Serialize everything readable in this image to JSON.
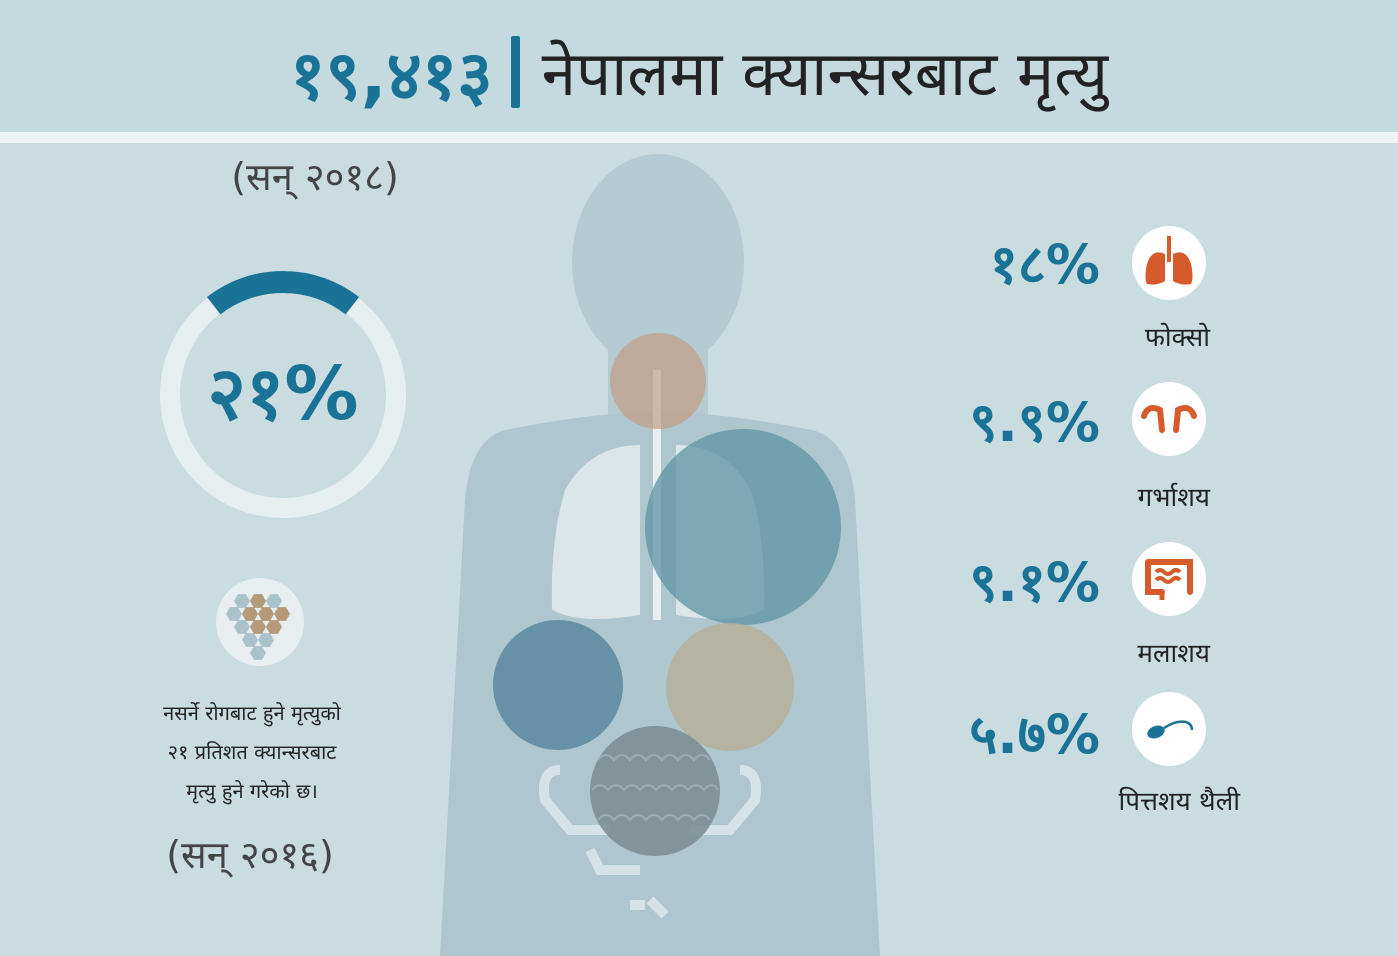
{
  "header": {
    "number": "१९,४१३",
    "title": "नेपालमा क्यान्सरबाट मृत्यु"
  },
  "left_panel": {
    "year_top": "(सन् २०१८)",
    "donut_value": "२१%",
    "donut_fraction": 0.21,
    "description_lines": [
      "नसर्ने रोगबाट हुने मृत्युको",
      "२१ प्रतिशत क्यान्सरबाट",
      "मृत्यु हुने गरेको छ।"
    ],
    "year_bottom": "(सन् २०१६)"
  },
  "stats": [
    {
      "value": "१८%",
      "label": "फोक्सो",
      "icon": "lungs-icon"
    },
    {
      "value": "९.९%",
      "label": "गर्भाशय",
      "icon": "uterus-icon"
    },
    {
      "value": "९.१%",
      "label": "मलाशय",
      "icon": "intestine-icon"
    },
    {
      "value": "५.७%",
      "label": "पित्तशय थैली",
      "icon": "gallbladder-icon"
    }
  ],
  "colors": {
    "background": "#c9dce0",
    "accent_blue": "#1a7396",
    "organ_orange": "#d65a2c",
    "silhouette": "#aec6cd"
  }
}
